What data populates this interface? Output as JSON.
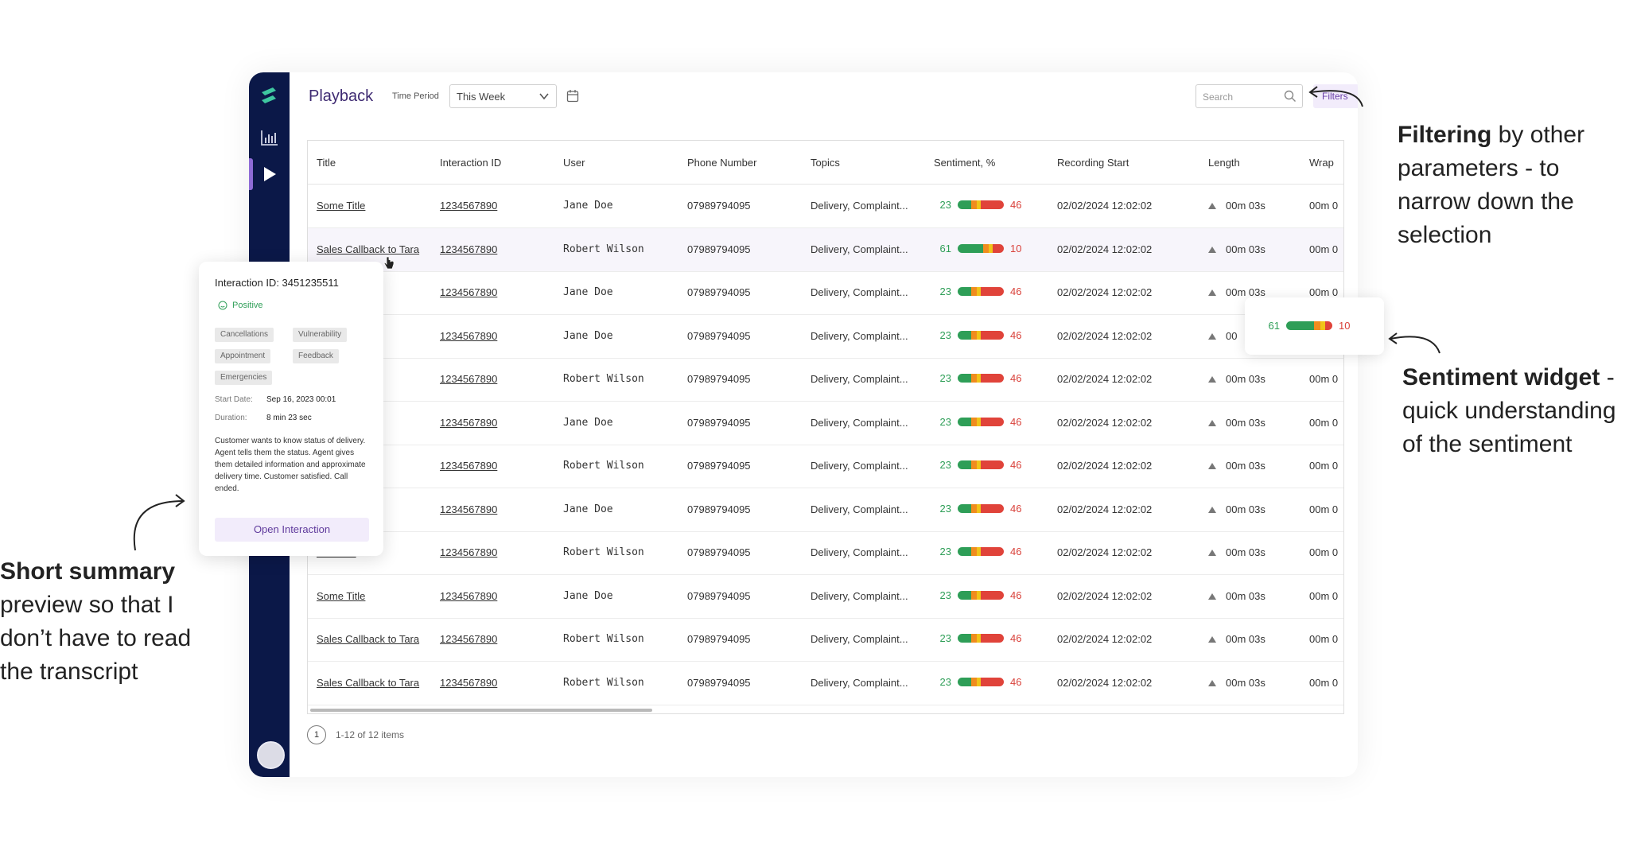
{
  "app": {
    "page_title": "Playback",
    "time_period_label": "Time Period",
    "time_period_value": "This Week",
    "search_placeholder": "Search",
    "filters_label": "Filters"
  },
  "sidebar": {
    "items": [
      {
        "name": "analytics",
        "icon": "bar-chart-icon"
      },
      {
        "name": "playback",
        "icon": "play-icon",
        "active": true
      }
    ]
  },
  "table": {
    "columns": [
      "Title",
      "Interaction ID",
      "User",
      "Phone Number",
      "Topics",
      "Sentiment, %",
      "Recording Start",
      "Length",
      "Wrap"
    ],
    "rows": [
      {
        "title": "Some Title",
        "id": "1234567890",
        "user": "Jane Doe",
        "phone": "07989794095",
        "topics": "Delivery, Complaint...",
        "pos": "23",
        "neg": "46",
        "start": "02/02/2024 12:02:02",
        "length": "00m 03s",
        "wrap": "00m 0"
      },
      {
        "title": "Sales Callback to Tara",
        "id": "1234567890",
        "user": "Robert Wilson",
        "phone": "07989794095",
        "topics": "Delivery, Complaint...",
        "pos": "61",
        "neg": "10",
        "start": "02/02/2024 12:02:02",
        "length": "00m 03s",
        "wrap": "00m 0"
      },
      {
        "title": "",
        "id": "1234567890",
        "user": "Jane Doe",
        "phone": "07989794095",
        "topics": "Delivery, Complaint...",
        "pos": "23",
        "neg": "46",
        "start": "02/02/2024 12:02:02",
        "length": "00m 03s",
        "wrap": "00m 0"
      },
      {
        "title": "",
        "id": "1234567890",
        "user": "Jane Doe",
        "phone": "07989794095",
        "topics": "Delivery, Complaint...",
        "pos": "23",
        "neg": "46",
        "start": "02/02/2024 12:02:02",
        "length": "00",
        "wrap": ""
      },
      {
        "title": "k to Tara",
        "id": "1234567890",
        "user": "Robert Wilson",
        "phone": "07989794095",
        "topics": "Delivery, Complaint...",
        "pos": "23",
        "neg": "46",
        "start": "02/02/2024 12:02:02",
        "length": "00m 03s",
        "wrap": "00m 0"
      },
      {
        "title": "",
        "id": "1234567890",
        "user": "Jane Doe",
        "phone": "07989794095",
        "topics": "Delivery, Complaint...",
        "pos": "23",
        "neg": "46",
        "start": "02/02/2024 12:02:02",
        "length": "00m 03s",
        "wrap": "00m 0"
      },
      {
        "title": "k to Tara",
        "id": "1234567890",
        "user": "Robert Wilson",
        "phone": "07989794095",
        "topics": "Delivery, Complaint...",
        "pos": "23",
        "neg": "46",
        "start": "02/02/2024 12:02:02",
        "length": "00m 03s",
        "wrap": "00m 0"
      },
      {
        "title": "",
        "id": "1234567890",
        "user": "Jane Doe",
        "phone": "07989794095",
        "topics": "Delivery, Complaint...",
        "pos": "23",
        "neg": "46",
        "start": "02/02/2024 12:02:02",
        "length": "00m 03s",
        "wrap": "00m 0"
      },
      {
        "title": "k to Tara",
        "id": "1234567890",
        "user": "Robert Wilson",
        "phone": "07989794095",
        "topics": "Delivery, Complaint...",
        "pos": "23",
        "neg": "46",
        "start": "02/02/2024 12:02:02",
        "length": "00m 03s",
        "wrap": "00m 0"
      },
      {
        "title": "Some Title",
        "id": "1234567890",
        "user": "Jane Doe",
        "phone": "07989794095",
        "topics": "Delivery, Complaint...",
        "pos": "23",
        "neg": "46",
        "start": "02/02/2024 12:02:02",
        "length": "00m 03s",
        "wrap": "00m 0"
      },
      {
        "title": "Sales Callback to Tara",
        "id": "1234567890",
        "user": "Robert Wilson",
        "phone": "07989794095",
        "topics": "Delivery, Complaint...",
        "pos": "23",
        "neg": "46",
        "start": "02/02/2024 12:02:02",
        "length": "00m 03s",
        "wrap": "00m 0"
      },
      {
        "title": "Sales Callback to Tara",
        "id": "1234567890",
        "user": "Robert Wilson",
        "phone": "07989794095",
        "topics": "Delivery, Complaint...",
        "pos": "23",
        "neg": "46",
        "start": "02/02/2024 12:02:02",
        "length": "00m 03s",
        "wrap": "00m 0"
      }
    ]
  },
  "pager": {
    "page": "1",
    "info": "1-12 of 12 items"
  },
  "popup": {
    "title": "Interaction ID: 3451235511",
    "sentiment": "Positive",
    "tags": [
      "Cancellations",
      "Vulnerability",
      "Appointment",
      "Feedback",
      "Emergencies"
    ],
    "start_label": "Start Date:",
    "start_value": "Sep 16, 2023 00:01",
    "duration_label": "Duration:",
    "duration_value": "8 min 23 sec",
    "summary": "Customer wants to know status of delivery. Agent tells them the status. Agent gives them detailed information and approximate delivery time. Customer satisfied. Call ended.",
    "button": "Open Interaction"
  },
  "sentiment_widget": {
    "pos": "61",
    "neg": "10"
  },
  "annotations": {
    "filtering_bold": "Filtering",
    "filtering_rest": " by other parameters - to narrow down the selection",
    "sentiment_bold": "Sentiment widget",
    "sentiment_rest": " - quick understanding of the sentiment",
    "summary_bold": "Short summary",
    "summary_rest": " preview so that I don’t have to read the transcript"
  },
  "colors": {
    "sidebar": "#0b1848",
    "accent": "#8e6bd6",
    "positive": "#2e9e57",
    "negative": "#d9423b"
  }
}
